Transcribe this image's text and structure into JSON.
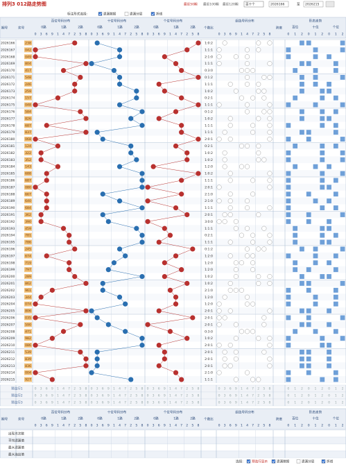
{
  "header": {
    "title": "排列3 012路走势图",
    "ranges": [
      "最近50期",
      "最近100期",
      "最近120期"
    ],
    "select": "百十个",
    "from": "2026166",
    "to_label": "至",
    "to": "2026215"
  },
  "options": {
    "label": "标注形式选择:",
    "items": [
      "遗漏数据",
      "遗漏分层",
      "折线"
    ],
    "checked": [
      true,
      false,
      true
    ]
  },
  "table": {
    "columns": {
      "issue": "期号",
      "number": "奖号",
      "hundreds": "百位号码分布",
      "tens": "十位号码分布",
      "units": "个位号码分布",
      "ratio": "个数比",
      "group": "组选号码分布",
      "span": "跨度",
      "form": "形态走势",
      "form_sub": [
        "百位",
        "十位",
        "个位"
      ]
    },
    "routes": [
      "0路",
      "1路",
      "2路"
    ],
    "digit_order": [
      0,
      3,
      6,
      9,
      1,
      4,
      7,
      2,
      5,
      8
    ],
    "form_digits": [
      0,
      1,
      2
    ],
    "rows": [
      {
        "issue": "2026166",
        "number": "238",
        "ratio": "1:0:2"
      },
      {
        "issue": "2026167",
        "number": "042",
        "ratio": "1:1:1"
      },
      {
        "issue": "2026168",
        "number": "049",
        "ratio": "2:1:0"
      },
      {
        "issue": "2026169",
        "number": "804",
        "ratio": "1:1:1"
      },
      {
        "issue": "2026170",
        "number": "417",
        "ratio": "0:3:0"
      },
      {
        "issue": "2026171",
        "number": "548",
        "ratio": "0:1:2"
      },
      {
        "issue": "2026172",
        "number": "246",
        "ratio": "1:1:1"
      },
      {
        "issue": "2026173",
        "number": "259",
        "ratio": "1:0:2"
      },
      {
        "issue": "2026174",
        "number": "157",
        "ratio": "0:2:1"
      },
      {
        "issue": "2026175",
        "number": "048",
        "ratio": "1:1:1"
      },
      {
        "issue": "2026176",
        "number": "584",
        "ratio": "0:1:2"
      },
      {
        "issue": "2026177",
        "number": "826",
        "ratio": "1:0:2"
      },
      {
        "issue": "2026178",
        "number": "687",
        "ratio": "1:1:1"
      },
      {
        "issue": "2026179",
        "number": "837",
        "ratio": "1:1:1"
      },
      {
        "issue": "2026180",
        "number": "068",
        "ratio": "2:0:1"
      },
      {
        "issue": "2026181",
        "number": "124",
        "ratio": "0:2:1"
      },
      {
        "issue": "2026182",
        "number": "322",
        "ratio": "1:0:2"
      },
      {
        "issue": "2026183",
        "number": "352",
        "ratio": "1:0:2"
      },
      {
        "issue": "2026184",
        "number": "143",
        "ratio": "1:2:0"
      },
      {
        "issue": "2026185",
        "number": "688",
        "ratio": "1:0:2"
      },
      {
        "issue": "2026186",
        "number": "687",
        "ratio": "1:1:1"
      },
      {
        "issue": "2026187",
        "number": "080",
        "ratio": "2:0:1"
      },
      {
        "issue": "2026188",
        "number": "667",
        "ratio": "2:1:0"
      },
      {
        "issue": "2026189",
        "number": "640",
        "ratio": "2:1:0"
      },
      {
        "issue": "2026190",
        "number": "684",
        "ratio": "1:1:1"
      },
      {
        "issue": "2026191",
        "number": "362",
        "ratio": "2:0:1"
      },
      {
        "issue": "2026192",
        "number": "390",
        "ratio": "3:0:0"
      },
      {
        "issue": "2026193",
        "number": "459",
        "ratio": "1:1:1"
      },
      {
        "issue": "2026194",
        "number": "781",
        "ratio": "0:2:1"
      },
      {
        "issue": "2026195",
        "number": "786",
        "ratio": "1:1:1"
      },
      {
        "issue": "2026196",
        "number": "245",
        "ratio": "0:1:2"
      },
      {
        "issue": "2026197",
        "number": "674",
        "ratio": "1:2:0"
      },
      {
        "issue": "2026198",
        "number": "719",
        "ratio": "1:2:0"
      },
      {
        "issue": "2026199",
        "number": "797",
        "ratio": "1:2:0"
      },
      {
        "issue": "2026200",
        "number": "289",
        "ratio": "1:0:2"
      },
      {
        "issue": "2026201",
        "number": "862",
        "ratio": "1:0:2"
      },
      {
        "issue": "2026202",
        "number": "961",
        "ratio": "2:1:0"
      },
      {
        "issue": "2026203",
        "number": "344",
        "ratio": "1:2:0"
      },
      {
        "issue": "2026204",
        "number": "074",
        "ratio": "1:2:0"
      },
      {
        "issue": "2026205",
        "number": "806",
        "ratio": "2:0:1"
      },
      {
        "issue": "2026206",
        "number": "035",
        "ratio": "2:0:1"
      },
      {
        "issue": "2026207",
        "number": "590",
        "ratio": "2:0:1"
      },
      {
        "issue": "2026208",
        "number": "471",
        "ratio": "0:3:0"
      },
      {
        "issue": "2026209",
        "number": "982",
        "ratio": "1:0:2"
      },
      {
        "issue": "2026210",
        "number": "086",
        "ratio": "2:0:1"
      },
      {
        "issue": "2026211",
        "number": "539",
        "ratio": "2:0:1"
      },
      {
        "issue": "2026212",
        "number": "839",
        "ratio": "2:0:1"
      },
      {
        "issue": "2026213",
        "number": "836",
        "ratio": "2:0:1"
      },
      {
        "issue": "2026214",
        "number": "004",
        "ratio": "2:1:0"
      },
      {
        "issue": "2026215",
        "number": "927",
        "ratio": "1:1:1"
      }
    ],
    "preselect": [
      "预选行1",
      "预选行2",
      "预选行3"
    ],
    "stats": [
      "出现总次数",
      "平均遗漏值",
      "最大遗漏值",
      "最大连出值"
    ]
  },
  "footer": {
    "label": "选择:",
    "items": [
      "预选行显示",
      "遗漏数据",
      "遗漏分层",
      "折线"
    ],
    "checked": [
      true,
      true,
      false,
      true
    ]
  }
}
